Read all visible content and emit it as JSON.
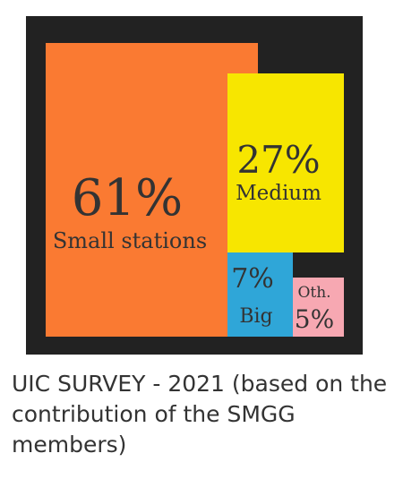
{
  "chart_data": {
    "type": "treemap",
    "slices": [
      {
        "label": "Small stations",
        "percent_label": "61%",
        "value": 61,
        "color": "#FA7A32"
      },
      {
        "label": "Medium",
        "percent_label": "27%",
        "value": 27,
        "color": "#F7E600"
      },
      {
        "label": "Big",
        "percent_label": "7%",
        "value": 7,
        "color": "#2FA6D8"
      },
      {
        "label": "Oth.",
        "percent_label": "5%",
        "value": 5,
        "color": "#F7A8B2"
      }
    ],
    "background_color": "#222222"
  },
  "caption": "UIC SURVEY - 2021 (based on the contribution of the SMGG members)"
}
